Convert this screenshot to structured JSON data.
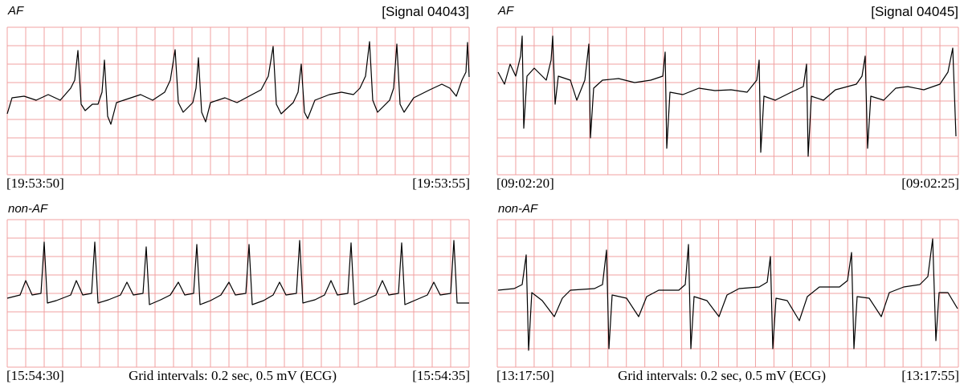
{
  "panels": [
    {
      "label": "AF",
      "signal": "[Signal 04043]",
      "start": "[19:53:50]",
      "end": "[19:53:55]"
    },
    {
      "label": "AF",
      "signal": "[Signal 04045]",
      "start": "[09:02:20]",
      "end": "[09:02:25]"
    },
    {
      "label": "non-AF",
      "start": "[15:54:30]",
      "end": "[15:54:35]",
      "note": "Grid intervals: 0.2 sec, 0.5 mV (ECG)"
    },
    {
      "label": "non-AF",
      "start": "[13:17:50]",
      "end": "[13:17:55]",
      "note": "Grid intervals: 0.2 sec, 0.5 mV (ECG)"
    }
  ]
}
